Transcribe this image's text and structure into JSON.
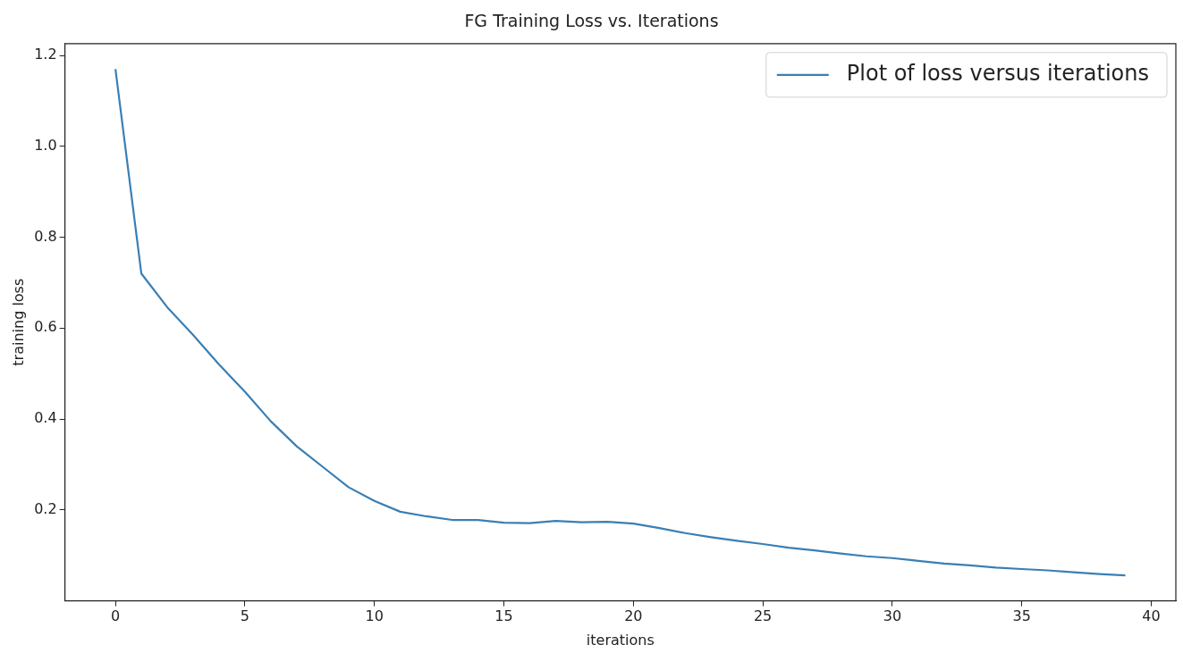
{
  "chart_data": {
    "type": "line",
    "title": "FG Training Loss vs. Iterations",
    "xlabel": "iterations",
    "ylabel": "training loss",
    "x": [
      0,
      1,
      2,
      3,
      4,
      5,
      6,
      7,
      8,
      9,
      10,
      11,
      12,
      13,
      14,
      15,
      16,
      17,
      18,
      19,
      20,
      21,
      22,
      23,
      24,
      25,
      26,
      27,
      28,
      29,
      30,
      31,
      32,
      33,
      34,
      35,
      36,
      37,
      38,
      39
    ],
    "series": [
      {
        "name": "Plot of loss versus iterations",
        "color": "#3a7fb4",
        "values": [
          1.17,
          0.72,
          0.646,
          0.585,
          0.52,
          0.46,
          0.395,
          0.34,
          0.295,
          0.25,
          0.22,
          0.196,
          0.186,
          0.178,
          0.178,
          0.172,
          0.171,
          0.176,
          0.173,
          0.174,
          0.17,
          0.16,
          0.149,
          0.14,
          0.132,
          0.125,
          0.117,
          0.111,
          0.104,
          0.098,
          0.094,
          0.088,
          0.082,
          0.078,
          0.073,
          0.07,
          0.067,
          0.063,
          0.059,
          0.056
        ]
      }
    ],
    "xlim": [
      -1.95,
      40.95
    ],
    "xticks": [
      0,
      5,
      10,
      15,
      20,
      25,
      30,
      35,
      40
    ],
    "ylim": [
      0,
      1.226
    ],
    "yticks": [
      0.2,
      0.4,
      0.6,
      0.8,
      {
        "value": 1,
        "label": "1.0"
      },
      1.2
    ],
    "legend": "top right",
    "grid": false,
    "marker": "none",
    "line_style": "solid"
  }
}
